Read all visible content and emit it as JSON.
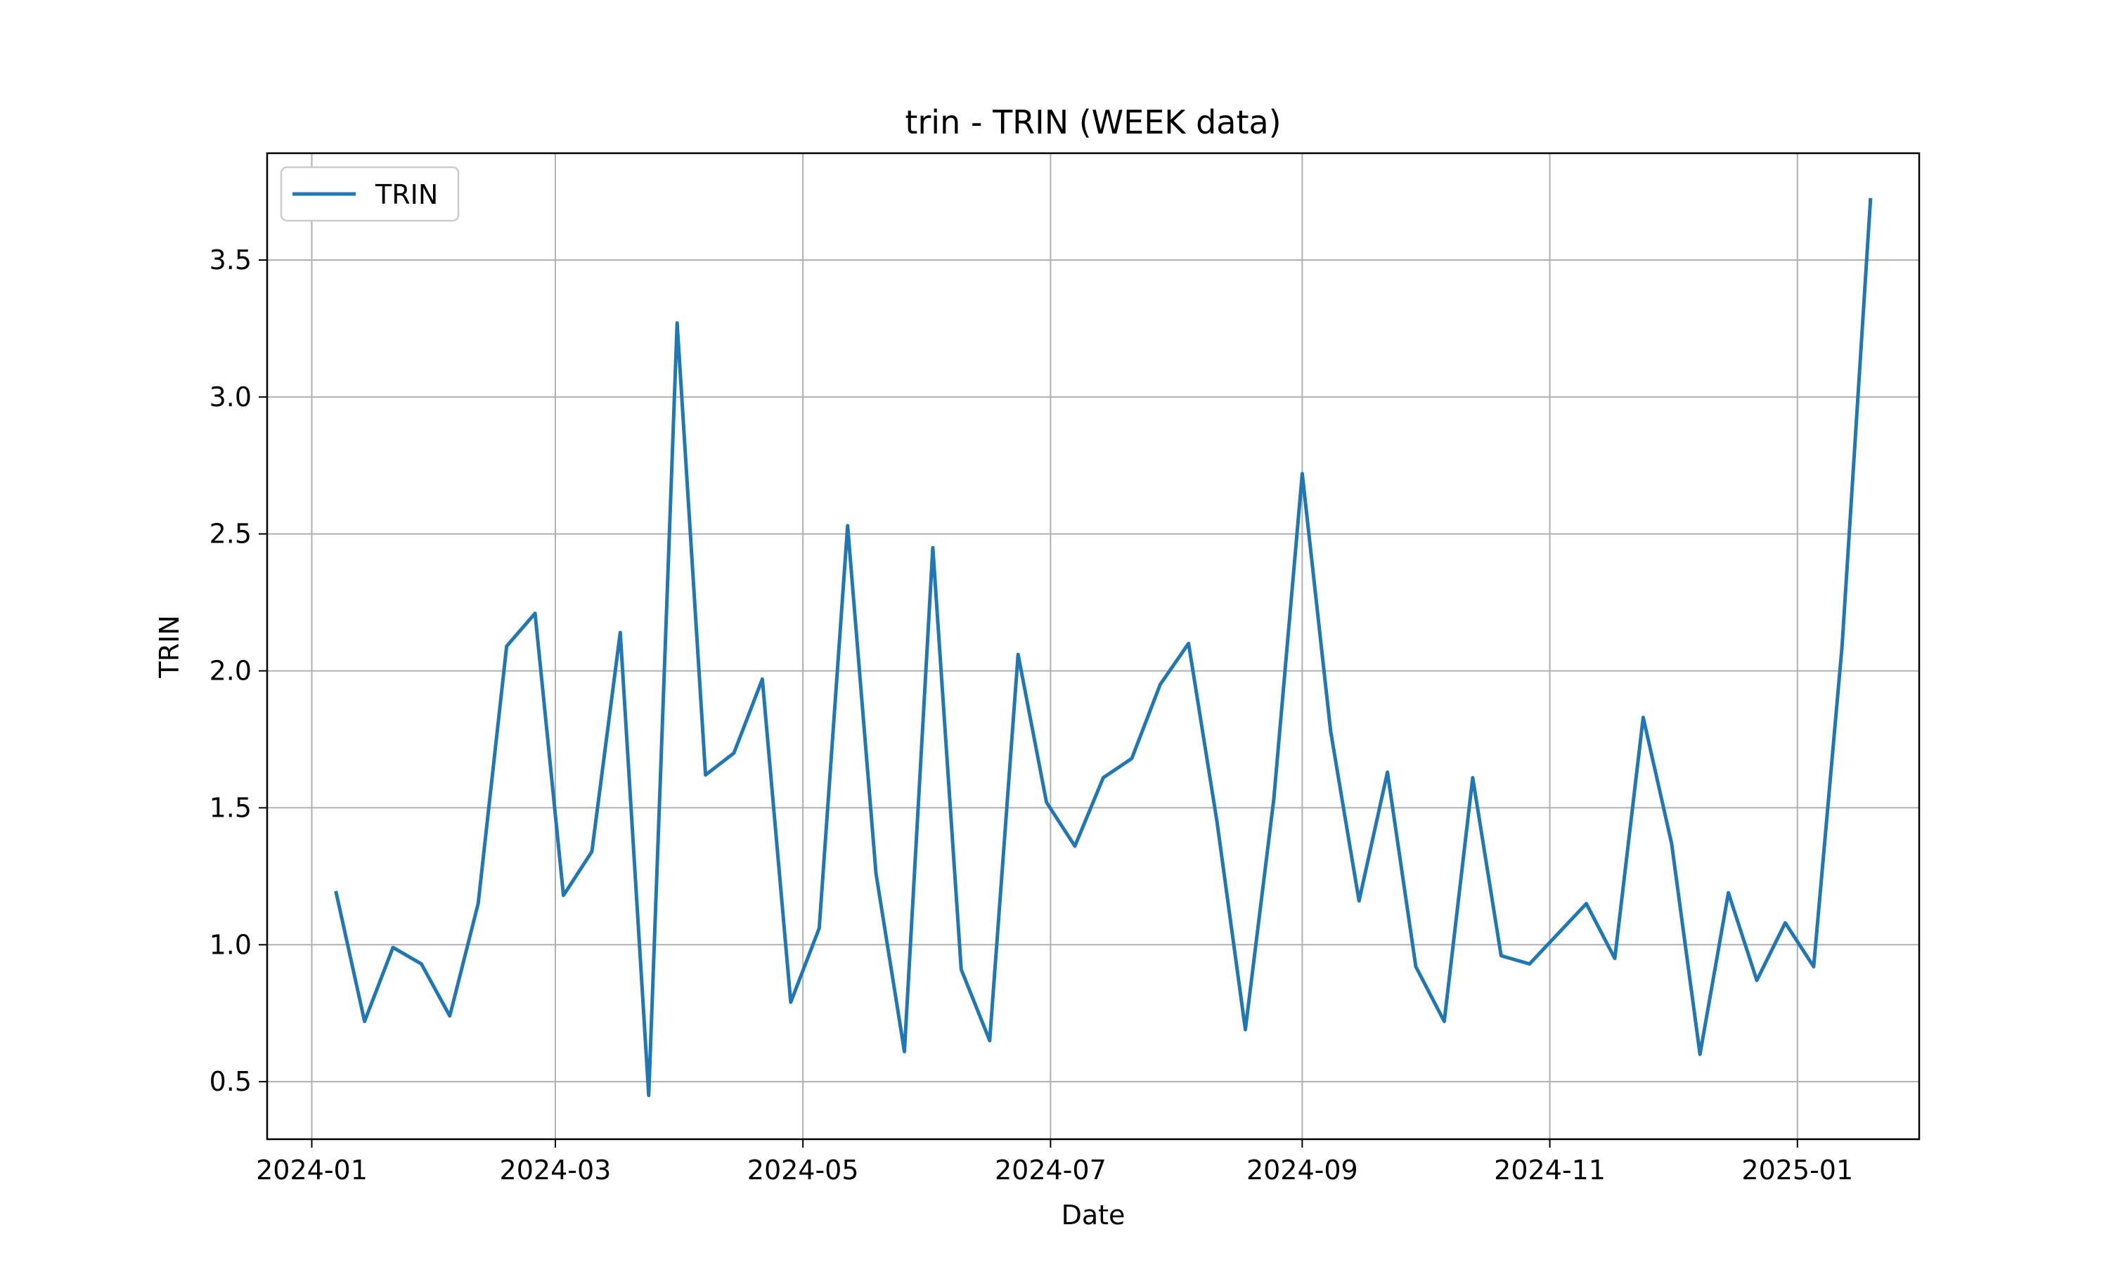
{
  "chart_data": {
    "type": "line",
    "title": "trin - TRIN (WEEK data)",
    "xlabel": "Date",
    "ylabel": "TRIN",
    "x_ticks": [
      "2024-01",
      "2024-03",
      "2024-05",
      "2024-07",
      "2024-09",
      "2024-11",
      "2025-01"
    ],
    "x_tick_dates": [
      "2024-01-01",
      "2024-03-01",
      "2024-05-01",
      "2024-07-01",
      "2024-09-01",
      "2024-11-01",
      "2025-01-01"
    ],
    "y_ticks": [
      "0.5",
      "1.0",
      "1.5",
      "2.0",
      "2.5",
      "3.0",
      "3.5"
    ],
    "y_tick_values": [
      0.5,
      1.0,
      1.5,
      2.0,
      2.5,
      3.0,
      3.5
    ],
    "xlim": [
      "2023-12-21",
      "2025-01-31"
    ],
    "ylim": [
      0.29,
      3.89
    ],
    "grid": true,
    "legend_position": "top-left",
    "series": [
      {
        "name": "TRIN",
        "color": "#1f77b4",
        "x": [
          "2024-01-07",
          "2024-01-14",
          "2024-01-21",
          "2024-01-28",
          "2024-02-04",
          "2024-02-11",
          "2024-02-18",
          "2024-02-25",
          "2024-03-03",
          "2024-03-10",
          "2024-03-17",
          "2024-03-24",
          "2024-03-31",
          "2024-04-07",
          "2024-04-14",
          "2024-04-21",
          "2024-04-28",
          "2024-05-05",
          "2024-05-12",
          "2024-05-19",
          "2024-05-26",
          "2024-06-02",
          "2024-06-09",
          "2024-06-16",
          "2024-06-23",
          "2024-06-30",
          "2024-07-07",
          "2024-07-14",
          "2024-07-21",
          "2024-07-28",
          "2024-08-04",
          "2024-08-11",
          "2024-08-18",
          "2024-08-25",
          "2024-09-01",
          "2024-09-08",
          "2024-09-15",
          "2024-09-22",
          "2024-09-29",
          "2024-10-06",
          "2024-10-13",
          "2024-10-20",
          "2024-10-27",
          "2024-11-03",
          "2024-11-10",
          "2024-11-17",
          "2024-11-24",
          "2024-12-01",
          "2024-12-08",
          "2024-12-15",
          "2024-12-22",
          "2024-12-29",
          "2025-01-05",
          "2025-01-12",
          "2025-01-19"
        ],
        "values": [
          1.19,
          0.72,
          0.99,
          0.93,
          0.74,
          1.15,
          2.09,
          2.21,
          1.18,
          1.34,
          2.14,
          0.45,
          3.27,
          1.62,
          1.7,
          1.97,
          0.79,
          1.06,
          2.53,
          1.26,
          0.61,
          2.45,
          0.91,
          0.65,
          2.06,
          1.52,
          1.36,
          1.61,
          1.68,
          1.95,
          2.1,
          1.45,
          0.69,
          1.53,
          2.72,
          1.78,
          1.16,
          1.63,
          0.92,
          0.72,
          1.61,
          0.96,
          0.93,
          1.04,
          1.15,
          0.95,
          1.83,
          1.37,
          0.6,
          1.19,
          0.87,
          1.08,
          0.92,
          2.09,
          3.72
        ]
      }
    ]
  }
}
